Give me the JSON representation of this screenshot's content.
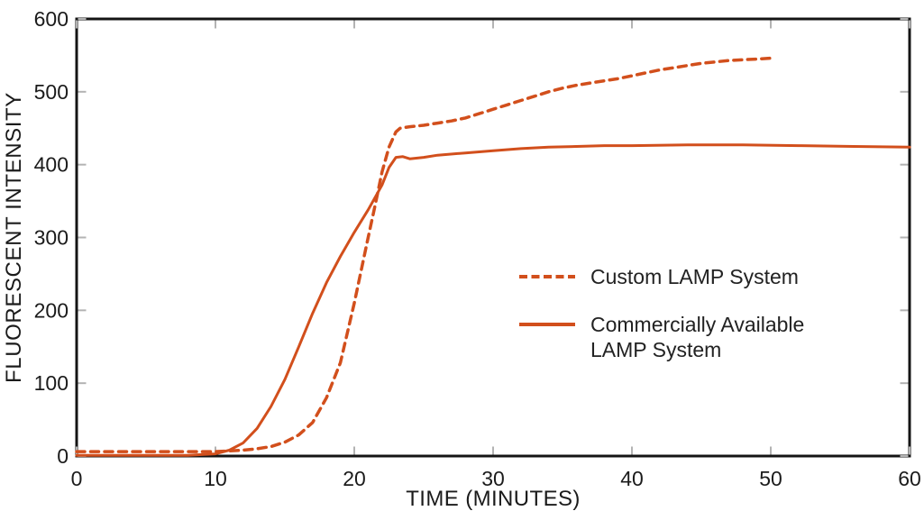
{
  "figure": {
    "background": "#ffffff",
    "accent_color": "#d24f1c",
    "axis_color": "#141414",
    "tick_color": "#b3b3b3",
    "text_color": "#1b1b1b"
  },
  "chart_data": {
    "type": "line",
    "title": "",
    "xlabel": "TIME (MINUTES)",
    "ylabel": "FLUORESCENT INTENSITY",
    "xlim": [
      0,
      60
    ],
    "ylim": [
      0,
      600
    ],
    "xticks": [
      0,
      10,
      20,
      30,
      40,
      50,
      60
    ],
    "yticks": [
      0,
      100,
      200,
      300,
      400,
      500,
      600
    ],
    "grid": false,
    "box": true,
    "legend_position": "center-right",
    "series": [
      {
        "name": "Custom LAMP System",
        "style": "dashed",
        "color": "#d24f1c",
        "points": [
          [
            0,
            6
          ],
          [
            3,
            6
          ],
          [
            6,
            6
          ],
          [
            8,
            6
          ],
          [
            10,
            6
          ],
          [
            11,
            7
          ],
          [
            12,
            8
          ],
          [
            13,
            10
          ],
          [
            14,
            13
          ],
          [
            15,
            19
          ],
          [
            16,
            29
          ],
          [
            17,
            46
          ],
          [
            18,
            80
          ],
          [
            19,
            128
          ],
          [
            20,
            210
          ],
          [
            20.5,
            255
          ],
          [
            21,
            300
          ],
          [
            21.5,
            344
          ],
          [
            22,
            390
          ],
          [
            22.5,
            424
          ],
          [
            23,
            445
          ],
          [
            23.3,
            450
          ],
          [
            24,
            452
          ],
          [
            25,
            454
          ],
          [
            26,
            457
          ],
          [
            27,
            460
          ],
          [
            28,
            464
          ],
          [
            29,
            470
          ],
          [
            30,
            476
          ],
          [
            31,
            482
          ],
          [
            32,
            488
          ],
          [
            33,
            494
          ],
          [
            34,
            500
          ],
          [
            35,
            505
          ],
          [
            36,
            509
          ],
          [
            37,
            512
          ],
          [
            38,
            515
          ],
          [
            39,
            518
          ],
          [
            40,
            522
          ],
          [
            41,
            526
          ],
          [
            42,
            530
          ],
          [
            43,
            533
          ],
          [
            44,
            536
          ],
          [
            45,
            539
          ],
          [
            46,
            541
          ],
          [
            47,
            543
          ],
          [
            48,
            544
          ],
          [
            49,
            545
          ],
          [
            50,
            546
          ]
        ]
      },
      {
        "name": "Commercially Available LAMP System",
        "style": "solid",
        "color": "#d24f1c",
        "points": [
          [
            0,
            1
          ],
          [
            3,
            1
          ],
          [
            6,
            1
          ],
          [
            8,
            1
          ],
          [
            9,
            2
          ],
          [
            10,
            3
          ],
          [
            11,
            8
          ],
          [
            12,
            18
          ],
          [
            13,
            38
          ],
          [
            14,
            68
          ],
          [
            15,
            105
          ],
          [
            16,
            150
          ],
          [
            17,
            196
          ],
          [
            18,
            238
          ],
          [
            19,
            274
          ],
          [
            20,
            307
          ],
          [
            21,
            338
          ],
          [
            22,
            372
          ],
          [
            22.5,
            396
          ],
          [
            23,
            410
          ],
          [
            23.5,
            411
          ],
          [
            24,
            408
          ],
          [
            25,
            410
          ],
          [
            26,
            413
          ],
          [
            28,
            416
          ],
          [
            30,
            419
          ],
          [
            32,
            422
          ],
          [
            34,
            424
          ],
          [
            36,
            425
          ],
          [
            38,
            426
          ],
          [
            40,
            426
          ],
          [
            44,
            427
          ],
          [
            48,
            427
          ],
          [
            52,
            426
          ],
          [
            56,
            425
          ],
          [
            60,
            424
          ]
        ]
      }
    ]
  },
  "legend": {
    "items": [
      {
        "label": "Custom LAMP System",
        "style": "dashed"
      },
      {
        "label": "Commercially Available\nLAMP System",
        "style": "solid"
      }
    ]
  }
}
